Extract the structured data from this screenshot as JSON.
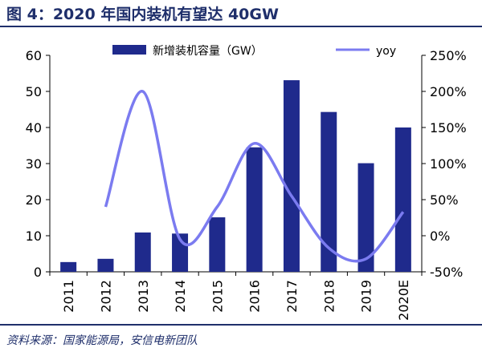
{
  "title": "图 4：2020 年国内装机有望达 40GW",
  "source": "资料来源：国家能源局，安信电新团队",
  "colors": {
    "bar": "#1f2a8c",
    "line": "#7b7bf0",
    "accent": "#1f2f6b"
  },
  "chart_data": {
    "type": "bar+line",
    "categories": [
      "2011",
      "2012",
      "2013",
      "2014",
      "2015",
      "2016",
      "2017",
      "2018",
      "2019",
      "2020E"
    ],
    "series": [
      {
        "name": "新增装机容量（GW）",
        "type": "bar",
        "axis": "left",
        "values": [
          2.7,
          3.6,
          10.9,
          10.6,
          15.1,
          34.5,
          53.1,
          44.3,
          30.1,
          40.0
        ]
      },
      {
        "name": "yoy",
        "type": "line",
        "axis": "right",
        "smooth": true,
        "values": [
          null,
          0.4,
          2.0,
          -0.05,
          0.4,
          1.28,
          0.55,
          -0.17,
          -0.32,
          0.33
        ]
      }
    ],
    "y_left": {
      "min": 0,
      "max": 60,
      "ticks": [
        "0",
        "10",
        "20",
        "30",
        "40",
        "50",
        "60"
      ]
    },
    "y_right": {
      "min": -0.5,
      "max": 2.5,
      "ticks": [
        "-50%",
        "0%",
        "50%",
        "100%",
        "150%",
        "200%",
        "250%"
      ]
    },
    "legend_position": "top"
  }
}
